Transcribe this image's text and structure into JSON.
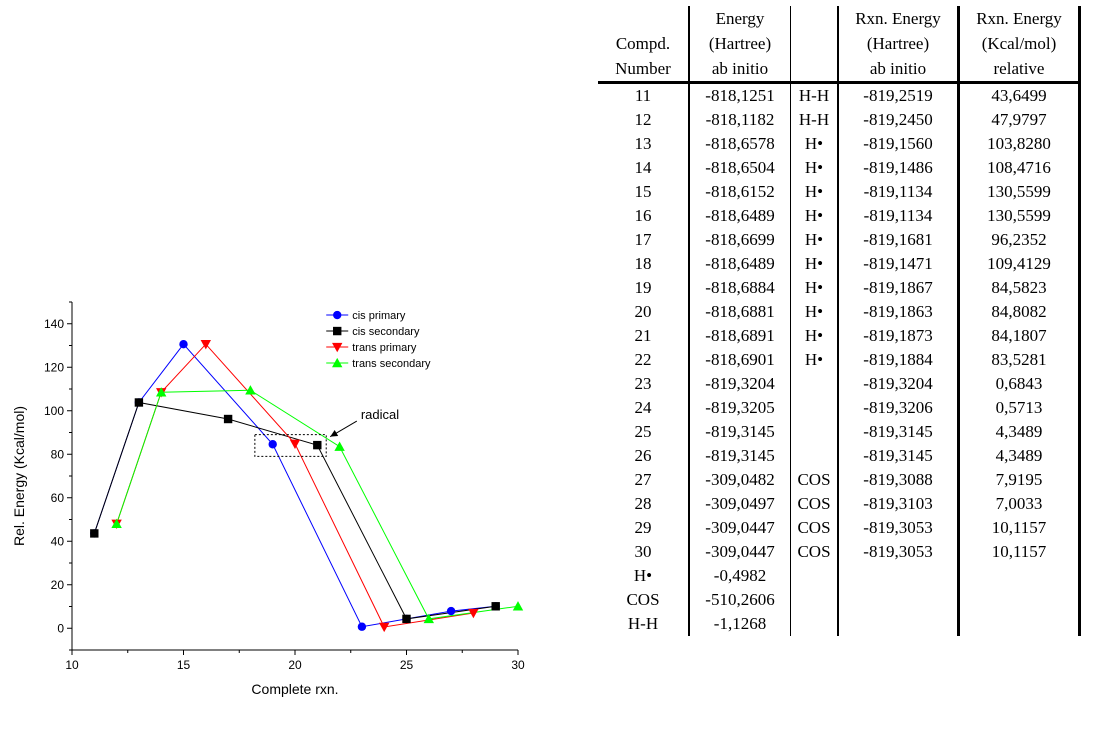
{
  "chart_data": {
    "type": "line",
    "title": "",
    "xlabel": "Complete rxn.",
    "ylabel": "Rel. Energy (Kcal/mol)",
    "xlim": [
      10,
      30
    ],
    "ylim": [
      -10,
      150
    ],
    "xticks": [
      10,
      15,
      20,
      25,
      30
    ],
    "yticks": [
      0,
      20,
      40,
      60,
      80,
      100,
      120,
      140
    ],
    "grid": false,
    "legend_position": "top-right",
    "series": [
      {
        "name": "cis primary",
        "color": "#0000ff",
        "marker": "circle",
        "x": [
          11,
          13,
          15,
          19,
          23,
          25,
          27,
          29
        ],
        "y": [
          43.6,
          103.8,
          130.6,
          84.6,
          0.7,
          4.3,
          7.9,
          10.1
        ]
      },
      {
        "name": "cis secondary",
        "color": "#000000",
        "marker": "square",
        "x": [
          11,
          13,
          17,
          21,
          25,
          29
        ],
        "y": [
          43.6,
          103.8,
          96.2,
          84.2,
          4.3,
          10.1
        ]
      },
      {
        "name": "trans primary",
        "color": "#ff0000",
        "marker": "triangle-down",
        "x": [
          12,
          14,
          16,
          20,
          24,
          28
        ],
        "y": [
          48.0,
          108.5,
          130.6,
          84.8,
          0.6,
          7.0
        ]
      },
      {
        "name": "trans secondary",
        "color": "#00ff00",
        "marker": "triangle-up",
        "x": [
          12,
          14,
          18,
          22,
          26,
          30
        ],
        "y": [
          48.0,
          108.5,
          109.4,
          83.5,
          4.3,
          10.1
        ]
      }
    ],
    "annotations": [
      {
        "text": "radical",
        "box_x": [
          18.2,
          21.4
        ],
        "box_y": [
          79,
          89
        ],
        "text_x": 23.4,
        "text_y": 98
      }
    ]
  },
  "table": {
    "headers": [
      [
        "",
        "Energy",
        "",
        "Rxn. Energy",
        "Rxn. Energy"
      ],
      [
        "Compd.",
        "(Hartree)",
        "",
        "(Hartree)",
        "(Kcal/mol)"
      ],
      [
        "Number",
        "ab initio",
        "",
        "ab initio",
        "relative"
      ]
    ],
    "rows": [
      [
        "11",
        "-818,1251",
        "H-H",
        "-819,2519",
        "43,6499"
      ],
      [
        "12",
        "-818,1182",
        "H-H",
        "-819,2450",
        "47,9797"
      ],
      [
        "13",
        "-818,6578",
        "H•",
        "-819,1560",
        "103,8280"
      ],
      [
        "14",
        "-818,6504",
        "H•",
        "-819,1486",
        "108,4716"
      ],
      [
        "15",
        "-818,6152",
        "H•",
        "-819,1134",
        "130,5599"
      ],
      [
        "16",
        "-818,6489",
        "H•",
        "-819,1134",
        "130,5599"
      ],
      [
        "17",
        "-818,6699",
        "H•",
        "-819,1681",
        "96,2352"
      ],
      [
        "18",
        "-818,6489",
        "H•",
        "-819,1471",
        "109,4129"
      ],
      [
        "19",
        "-818,6884",
        "H•",
        "-819,1867",
        "84,5823"
      ],
      [
        "20",
        "-818,6881",
        "H•",
        "-819,1863",
        "84,8082"
      ],
      [
        "21",
        "-818,6891",
        "H•",
        "-819,1873",
        "84,1807"
      ],
      [
        "22",
        "-818,6901",
        "H•",
        "-819,1884",
        "83,5281"
      ],
      [
        "23",
        "-819,3204",
        "",
        "-819,3204",
        "0,6843"
      ],
      [
        "24",
        "-819,3205",
        "",
        "-819,3206",
        "0,5713"
      ],
      [
        "25",
        "-819,3145",
        "",
        "-819,3145",
        "4,3489"
      ],
      [
        "26",
        "-819,3145",
        "",
        "-819,3145",
        "4,3489"
      ],
      [
        "27",
        "-309,0482",
        "COS",
        "-819,3088",
        "7,9195"
      ],
      [
        "28",
        "-309,0497",
        "COS",
        "-819,3103",
        "7,0033"
      ],
      [
        "29",
        "-309,0447",
        "COS",
        "-819,3053",
        "10,1157"
      ],
      [
        "30",
        "-309,0447",
        "COS",
        "-819,3053",
        "10,1157"
      ],
      [
        "H•",
        "-0,4982",
        "",
        "",
        ""
      ],
      [
        "COS",
        "-510,2606",
        "",
        "",
        ""
      ],
      [
        "H-H",
        "-1,1268",
        "",
        "",
        ""
      ]
    ]
  }
}
